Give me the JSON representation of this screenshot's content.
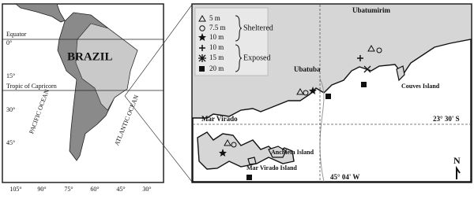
{
  "left_map": {
    "latitude_labels": [
      "0°",
      "15°",
      "30°",
      "45°"
    ],
    "longitude_labels": [
      "105°",
      "90°",
      "75°",
      "60°",
      "45°",
      "30°"
    ],
    "country": "BRAZIL",
    "equator": "Equator",
    "tropic": "Tropic of Capricorn",
    "oceans": [
      "PACIFIC OCEAN",
      "ATLANTIC OCEAN"
    ]
  },
  "right_map": {
    "legend": {
      "items": [
        "5 m",
        "7.5 m",
        "10 m",
        "10 m",
        "15 m",
        "20 m"
      ],
      "groups": [
        "Sheltered",
        "Exposed"
      ]
    },
    "places": [
      "Ubatumirim",
      "Ubatuba",
      "Couves Island",
      "Mar Virado",
      "Mar Virado Island",
      "Anchieta Island"
    ],
    "latitude": "23° 30' S",
    "longitude": "45° 04' W",
    "north": "N"
  }
}
